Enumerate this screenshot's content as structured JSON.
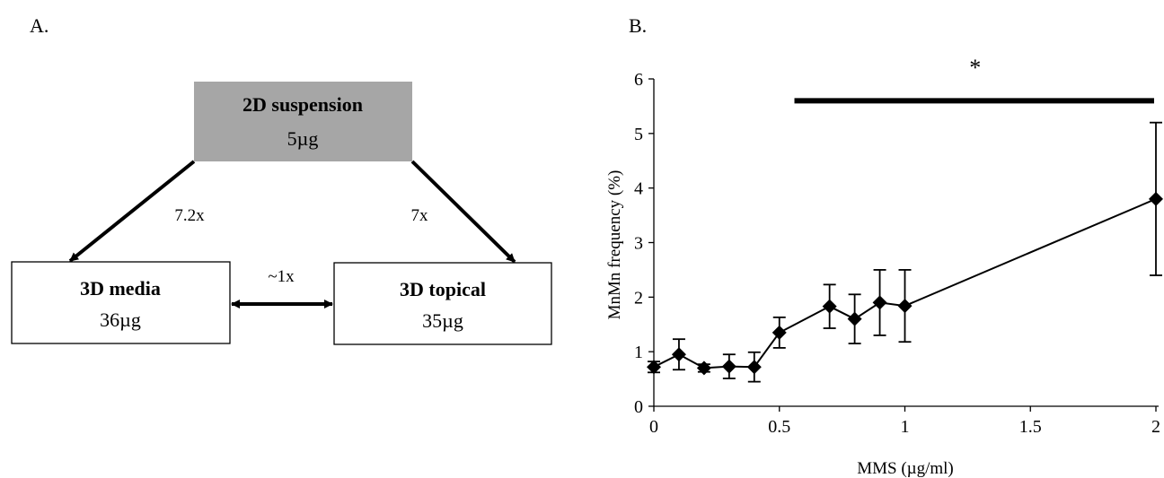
{
  "panel_a": {
    "label": "A.",
    "top_box": {
      "title": "2D suspension",
      "value": "5µg",
      "fill": "#a6a6a6"
    },
    "left_box": {
      "title": "3D media",
      "value": "36µg"
    },
    "right_box": {
      "title": "3D topical",
      "value": "35µg"
    },
    "left_ratio": "7.2x",
    "right_ratio": "7x",
    "middle_ratio": "~1x"
  },
  "panel_b": {
    "label": "B."
  },
  "chart_data": {
    "type": "line",
    "xlabel": "MMS (µg/ml)",
    "ylabel": "MnMn frequency (%)",
    "xlim": [
      0,
      2
    ],
    "ylim": [
      0,
      6
    ],
    "x_ticks": [
      0,
      0.5,
      1,
      1.5,
      2
    ],
    "x_tick_labels": [
      "0",
      "0.5",
      "1",
      "1.5",
      "2"
    ],
    "y_ticks": [
      0,
      1,
      2,
      3,
      4,
      5,
      6
    ],
    "y_tick_labels": [
      "0",
      "1",
      "2",
      "3",
      "4",
      "5",
      "6"
    ],
    "grid": false,
    "marker": "diamond",
    "series": [
      {
        "x": [
          0,
          0.1,
          0.2,
          0.3,
          0.4,
          0.5,
          0.7,
          0.8,
          0.9,
          1,
          2
        ],
        "y": [
          0.72,
          0.95,
          0.7,
          0.73,
          0.72,
          1.35,
          1.83,
          1.6,
          1.9,
          1.84,
          3.8
        ],
        "error": [
          0.1,
          0.28,
          0.07,
          0.22,
          0.27,
          0.28,
          0.4,
          0.45,
          0.6,
          0.66,
          1.4
        ]
      }
    ],
    "significance": {
      "label": "*",
      "x_start": 0.56,
      "x_end": 2,
      "y": 5.6
    }
  }
}
